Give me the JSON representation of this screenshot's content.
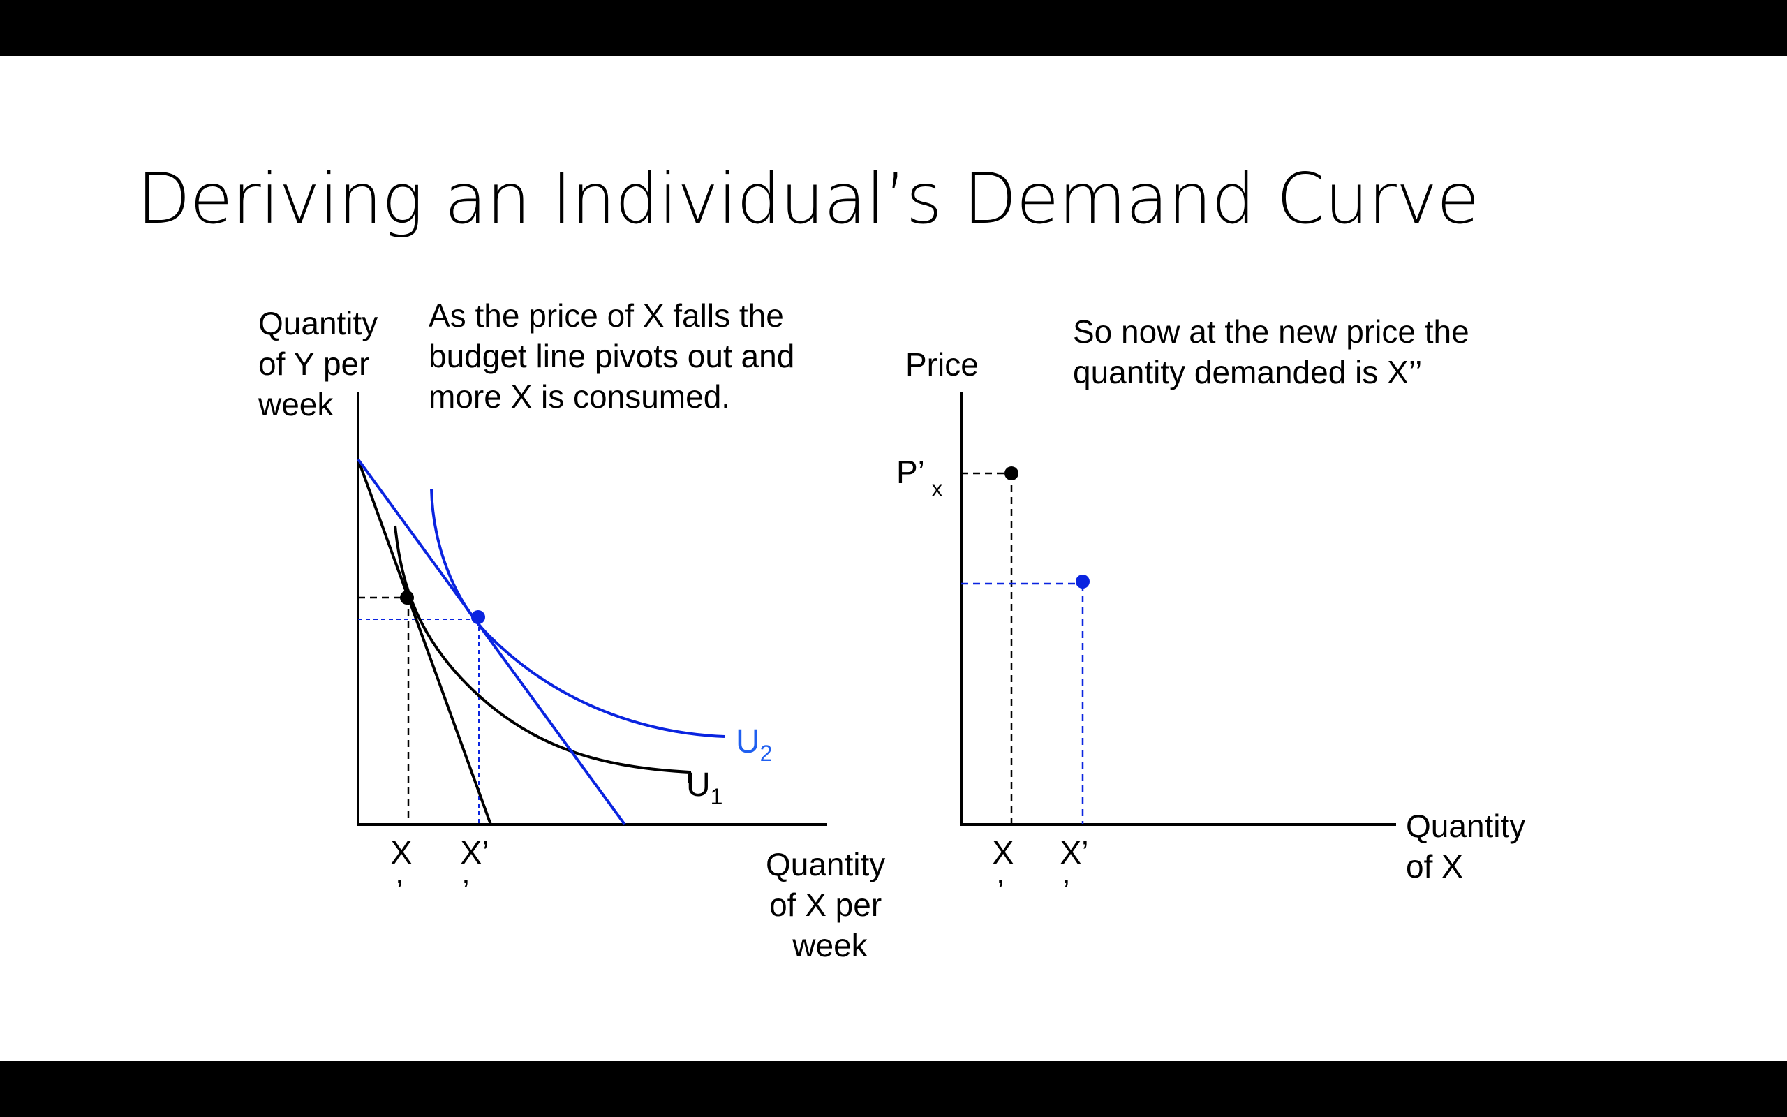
{
  "slide": {
    "title": "Deriving an Individual’s Demand Curve",
    "background": "#ffffff",
    "letterbox_color": "#000000"
  },
  "left_graph": {
    "y_axis_label": [
      "Quantity",
      "of Y per",
      "week"
    ],
    "x_axis_label": [
      "Quantity",
      "of X per",
      "week"
    ],
    "annotation": [
      "As the price of X falls the",
      "budget line pivots out and",
      "more X is consumed."
    ],
    "x_tick_labels": [
      {
        "main": "X",
        "mark": ","
      },
      {
        "main": "X’",
        "mark": ","
      }
    ],
    "curves": {
      "u1": {
        "base": "U",
        "sub": "1",
        "color": "#000000"
      },
      "u2": {
        "base": "U",
        "sub": "2",
        "color": "#0a24e0"
      }
    },
    "budget_lines": [
      {
        "name": "original",
        "color": "#000000"
      },
      {
        "name": "after price fall",
        "color": "#0a24e0"
      }
    ]
  },
  "right_graph": {
    "y_axis_label": "Price",
    "x_axis_label": [
      "Quantity",
      "of X"
    ],
    "annotation": [
      "So now at the new price the",
      "quantity demanded is X’’"
    ],
    "price_label": {
      "base": "P’",
      "sub": "x"
    },
    "x_tick_labels": [
      {
        "main": "X",
        "mark": ","
      },
      {
        "main": "X’",
        "mark": ","
      }
    ],
    "points": [
      {
        "name": "original price point",
        "color": "#000000"
      },
      {
        "name": "new price point",
        "color": "#0a24e0"
      }
    ]
  },
  "colors": {
    "black": "#000000",
    "blue": "#0a24e0",
    "blue_text": "#1f5ff0"
  }
}
